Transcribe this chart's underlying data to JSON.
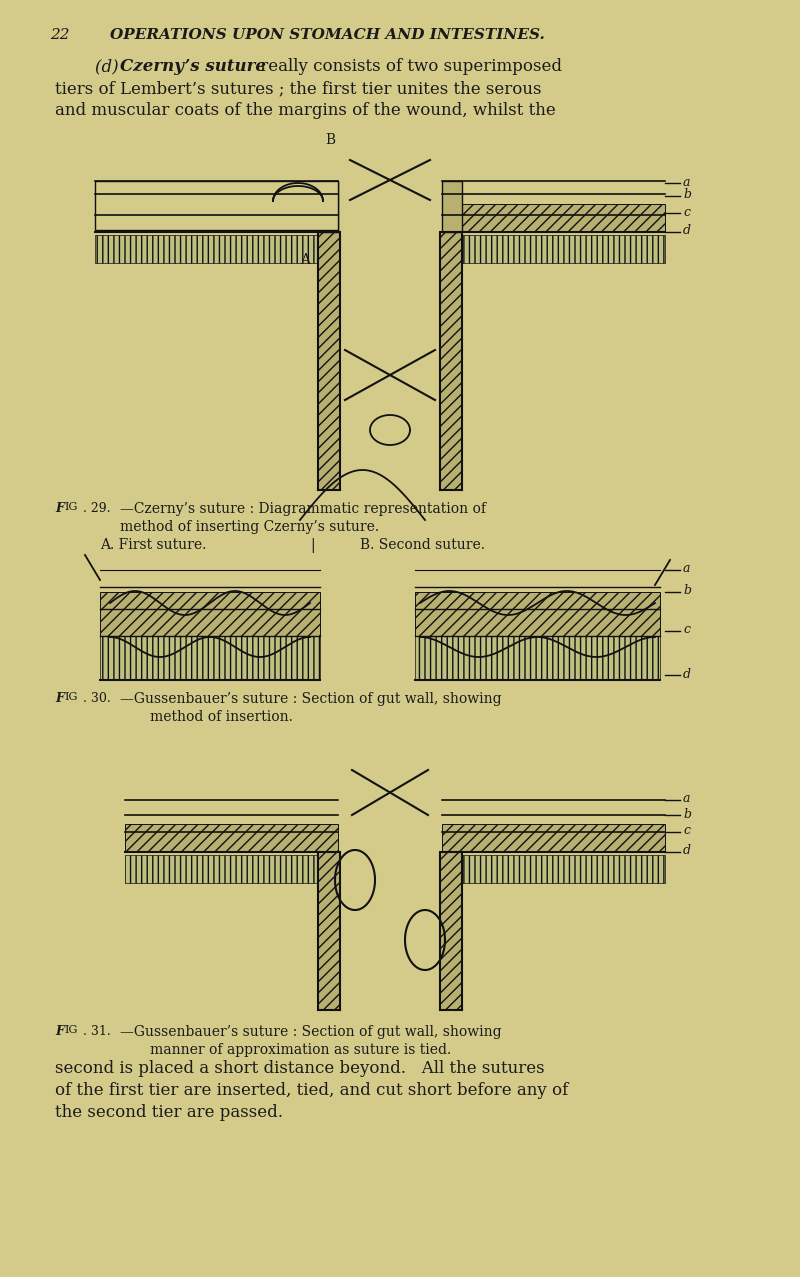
{
  "bg_color": "#d4cb8a",
  "page_width": 8.0,
  "page_height": 12.77,
  "text_color": "#1a1a1a",
  "line_color": "#111111",
  "hatch_color": "#222222",
  "title_text": "22   OPERATIONS UPON STOMACH AND INTESTINES.",
  "para_text": "(d) Czerny’s suture really consists of two superimposed tiers of Lembert’s sutures ; the first tier unites the serous and muscular coats of the margins of the wound, whilst the",
  "fig29_caption": "Fig. 29.—Czerny’s suture : Diagrammatic representation of\n      method of inserting Czerny’s suture.\n A. First suture.              |              B. Second suture.",
  "fig30_caption": "Fig. 30.—Gussenbauer’s suture : Section of gut wall, showing\n              method of insertion.",
  "fig31_caption": "Fig. 31.—Gussenbauer’s suture : Section of gut wall, showing\n         manner of approximation as suture is tied.",
  "para_text2": "second is placed a short distance beyond.   All the sutures of the first tier are inserted, tied, and cut short before any of the second tier are passed."
}
